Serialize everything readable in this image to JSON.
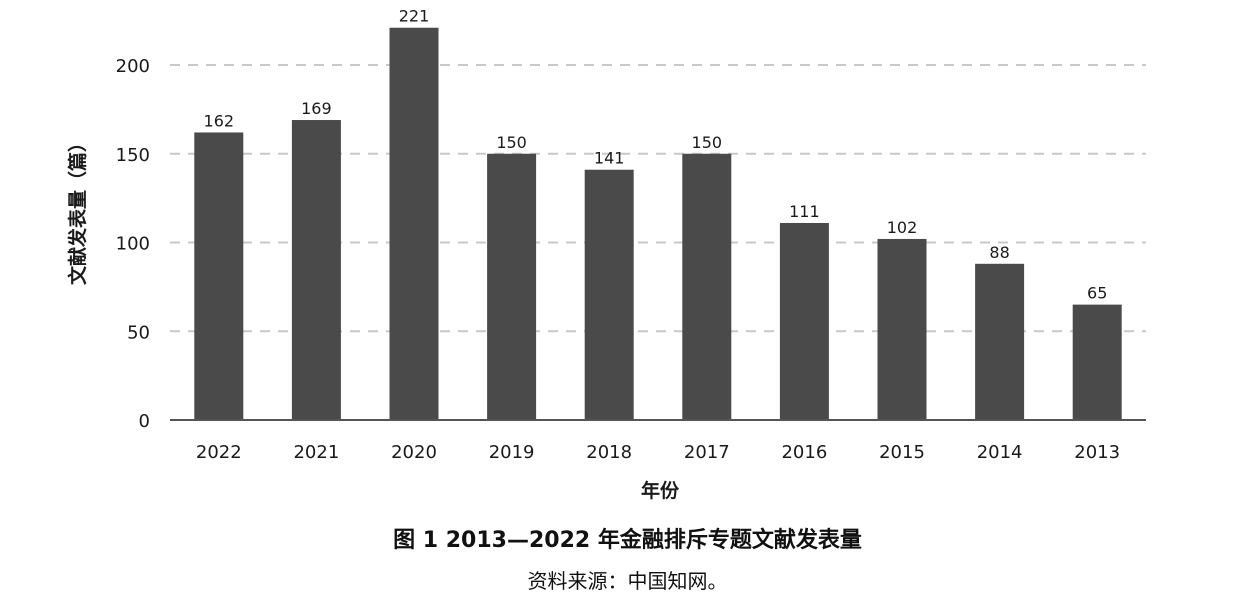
{
  "chart_data": {
    "type": "bar",
    "categories": [
      "2022",
      "2021",
      "2020",
      "2019",
      "2018",
      "2017",
      "2016",
      "2015",
      "2014",
      "2013"
    ],
    "values": [
      162,
      169,
      221,
      150,
      141,
      150,
      111,
      102,
      88,
      65
    ],
    "data_labels": [
      "162",
      "169",
      "221",
      "150",
      "141",
      "150",
      "111",
      "102",
      "88",
      "65"
    ],
    "xlabel": "年份",
    "ylabel": "文献发表量（篇）",
    "ylim": [
      0,
      221
    ],
    "yticks": [
      0,
      50,
      100,
      150,
      200
    ],
    "grid": "horizontal-dashed",
    "legend": "none"
  },
  "colors": {
    "bar": "#4a4a4a",
    "grid": "#c8c8c8",
    "axis": "#555555"
  },
  "caption": {
    "title": "图 1  2013—2022 年金融排斥专题文献发表量",
    "source": "资料来源：中国知网。"
  }
}
